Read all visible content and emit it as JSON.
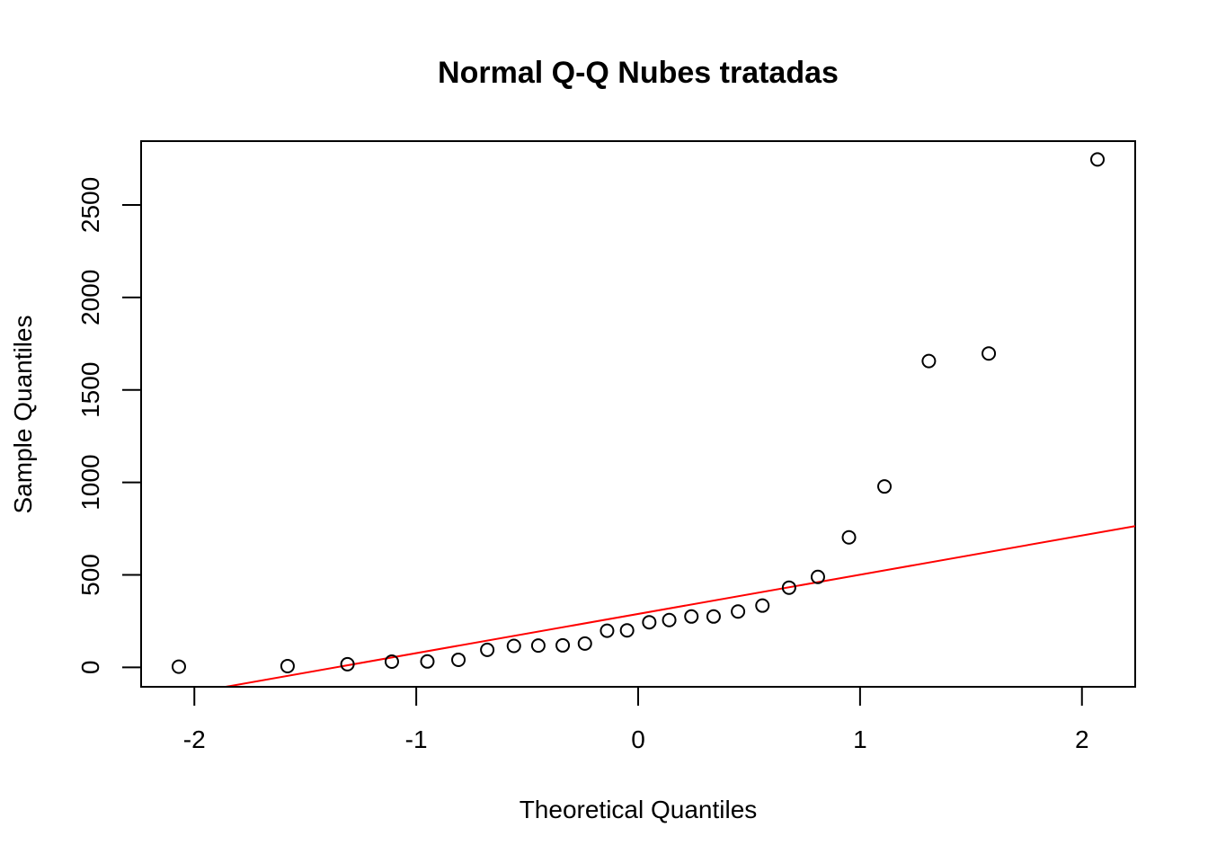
{
  "chart_data": {
    "type": "scatter",
    "title": "Normal Q-Q Nubes tratadas",
    "xlabel": "Theoretical Quantiles",
    "ylabel": "Sample Quantiles",
    "xlim": [
      -2.24,
      2.24
    ],
    "ylim": [
      -105,
      2845
    ],
    "x_ticks": [
      -2,
      -1,
      0,
      1,
      2
    ],
    "x_tick_labels": [
      "-2",
      "-1",
      "0",
      "1",
      "2"
    ],
    "y_ticks": [
      0,
      500,
      1000,
      1500,
      2000,
      2500
    ],
    "y_tick_labels": [
      "0",
      "500",
      "1000",
      "1500",
      "2000",
      "2500"
    ],
    "grid": false,
    "points": [
      {
        "x": -2.07,
        "y": 4
      },
      {
        "x": -1.58,
        "y": 7
      },
      {
        "x": -1.31,
        "y": 17
      },
      {
        "x": -1.11,
        "y": 31
      },
      {
        "x": -0.95,
        "y": 32
      },
      {
        "x": -0.81,
        "y": 41
      },
      {
        "x": -0.68,
        "y": 95
      },
      {
        "x": -0.56,
        "y": 116
      },
      {
        "x": -0.45,
        "y": 118
      },
      {
        "x": -0.34,
        "y": 119
      },
      {
        "x": -0.24,
        "y": 129
      },
      {
        "x": -0.14,
        "y": 198
      },
      {
        "x": -0.05,
        "y": 200
      },
      {
        "x": 0.05,
        "y": 244
      },
      {
        "x": 0.14,
        "y": 256
      },
      {
        "x": 0.24,
        "y": 275
      },
      {
        "x": 0.34,
        "y": 275
      },
      {
        "x": 0.45,
        "y": 302
      },
      {
        "x": 0.56,
        "y": 334
      },
      {
        "x": 0.68,
        "y": 431
      },
      {
        "x": 0.81,
        "y": 489
      },
      {
        "x": 0.95,
        "y": 703
      },
      {
        "x": 1.11,
        "y": 978
      },
      {
        "x": 1.31,
        "y": 1656
      },
      {
        "x": 1.58,
        "y": 1697
      },
      {
        "x": 2.07,
        "y": 2746
      }
    ],
    "reference_line": {
      "intercept": 289,
      "slope": 212,
      "color": "#ff0000"
    },
    "point_color": "#000000"
  }
}
